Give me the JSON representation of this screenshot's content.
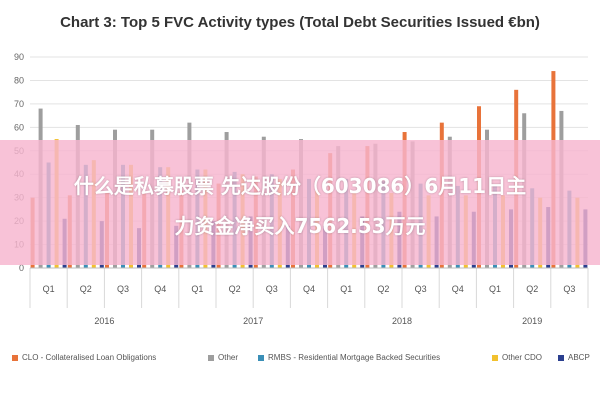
{
  "chart_data": {
    "type": "bar",
    "title": "Chart 3: Top 5 FVC Activity types (Total Debt Securities Issued €bn)",
    "xlabel": "",
    "ylabel": "",
    "ylim": [
      0,
      90
    ],
    "yticks": [
      "0",
      "10",
      "20",
      "30",
      "40",
      "50",
      "60",
      "70",
      "80",
      "90"
    ],
    "grid": true,
    "legend_position": "bottom",
    "categories": [
      "Q1",
      "Q2",
      "Q3",
      "Q4",
      "Q1",
      "Q2",
      "Q3",
      "Q4",
      "Q1",
      "Q2",
      "Q3",
      "Q4",
      "Q1",
      "Q2",
      "Q3"
    ],
    "groups": [
      {
        "label": "2016",
        "count": 4
      },
      {
        "label": "2017",
        "count": 4
      },
      {
        "label": "2018",
        "count": 4
      },
      {
        "label": "2019",
        "count": 3
      }
    ],
    "series": [
      {
        "name": "CLO - Collateralised Loan Obligations",
        "color": "#e8733a",
        "values": [
          30,
          31,
          32,
          32,
          33,
          36,
          39,
          42,
          49,
          52,
          58,
          62,
          69,
          76,
          84
        ]
      },
      {
        "name": "Other",
        "color": "#9e9e9e",
        "values": [
          68,
          61,
          59,
          59,
          62,
          58,
          56,
          55,
          52,
          53,
          54,
          56,
          59,
          66,
          67
        ]
      },
      {
        "name": "RMBS - Residential Mortgage Backed Securities",
        "color": "#3a8fb7",
        "values": [
          45,
          44,
          44,
          43,
          42,
          41,
          40,
          38,
          38,
          37,
          36,
          35,
          35,
          34,
          33
        ]
      },
      {
        "name": "Other CDO",
        "color": "#f2c12e",
        "values": [
          55,
          46,
          44,
          43,
          42,
          40,
          38,
          33,
          32,
          32,
          31,
          31,
          31,
          30,
          30
        ]
      },
      {
        "name": "ABCP",
        "color": "#2b3f8f",
        "values": [
          21,
          20,
          17,
          18,
          20,
          22,
          18,
          18,
          22,
          24,
          22,
          24,
          25,
          26,
          25
        ]
      }
    ]
  },
  "overlay": {
    "line1": "什么是私募股票 先达股份（603086）6月11日主",
    "line2": "力资金净买入7562.53万元"
  }
}
